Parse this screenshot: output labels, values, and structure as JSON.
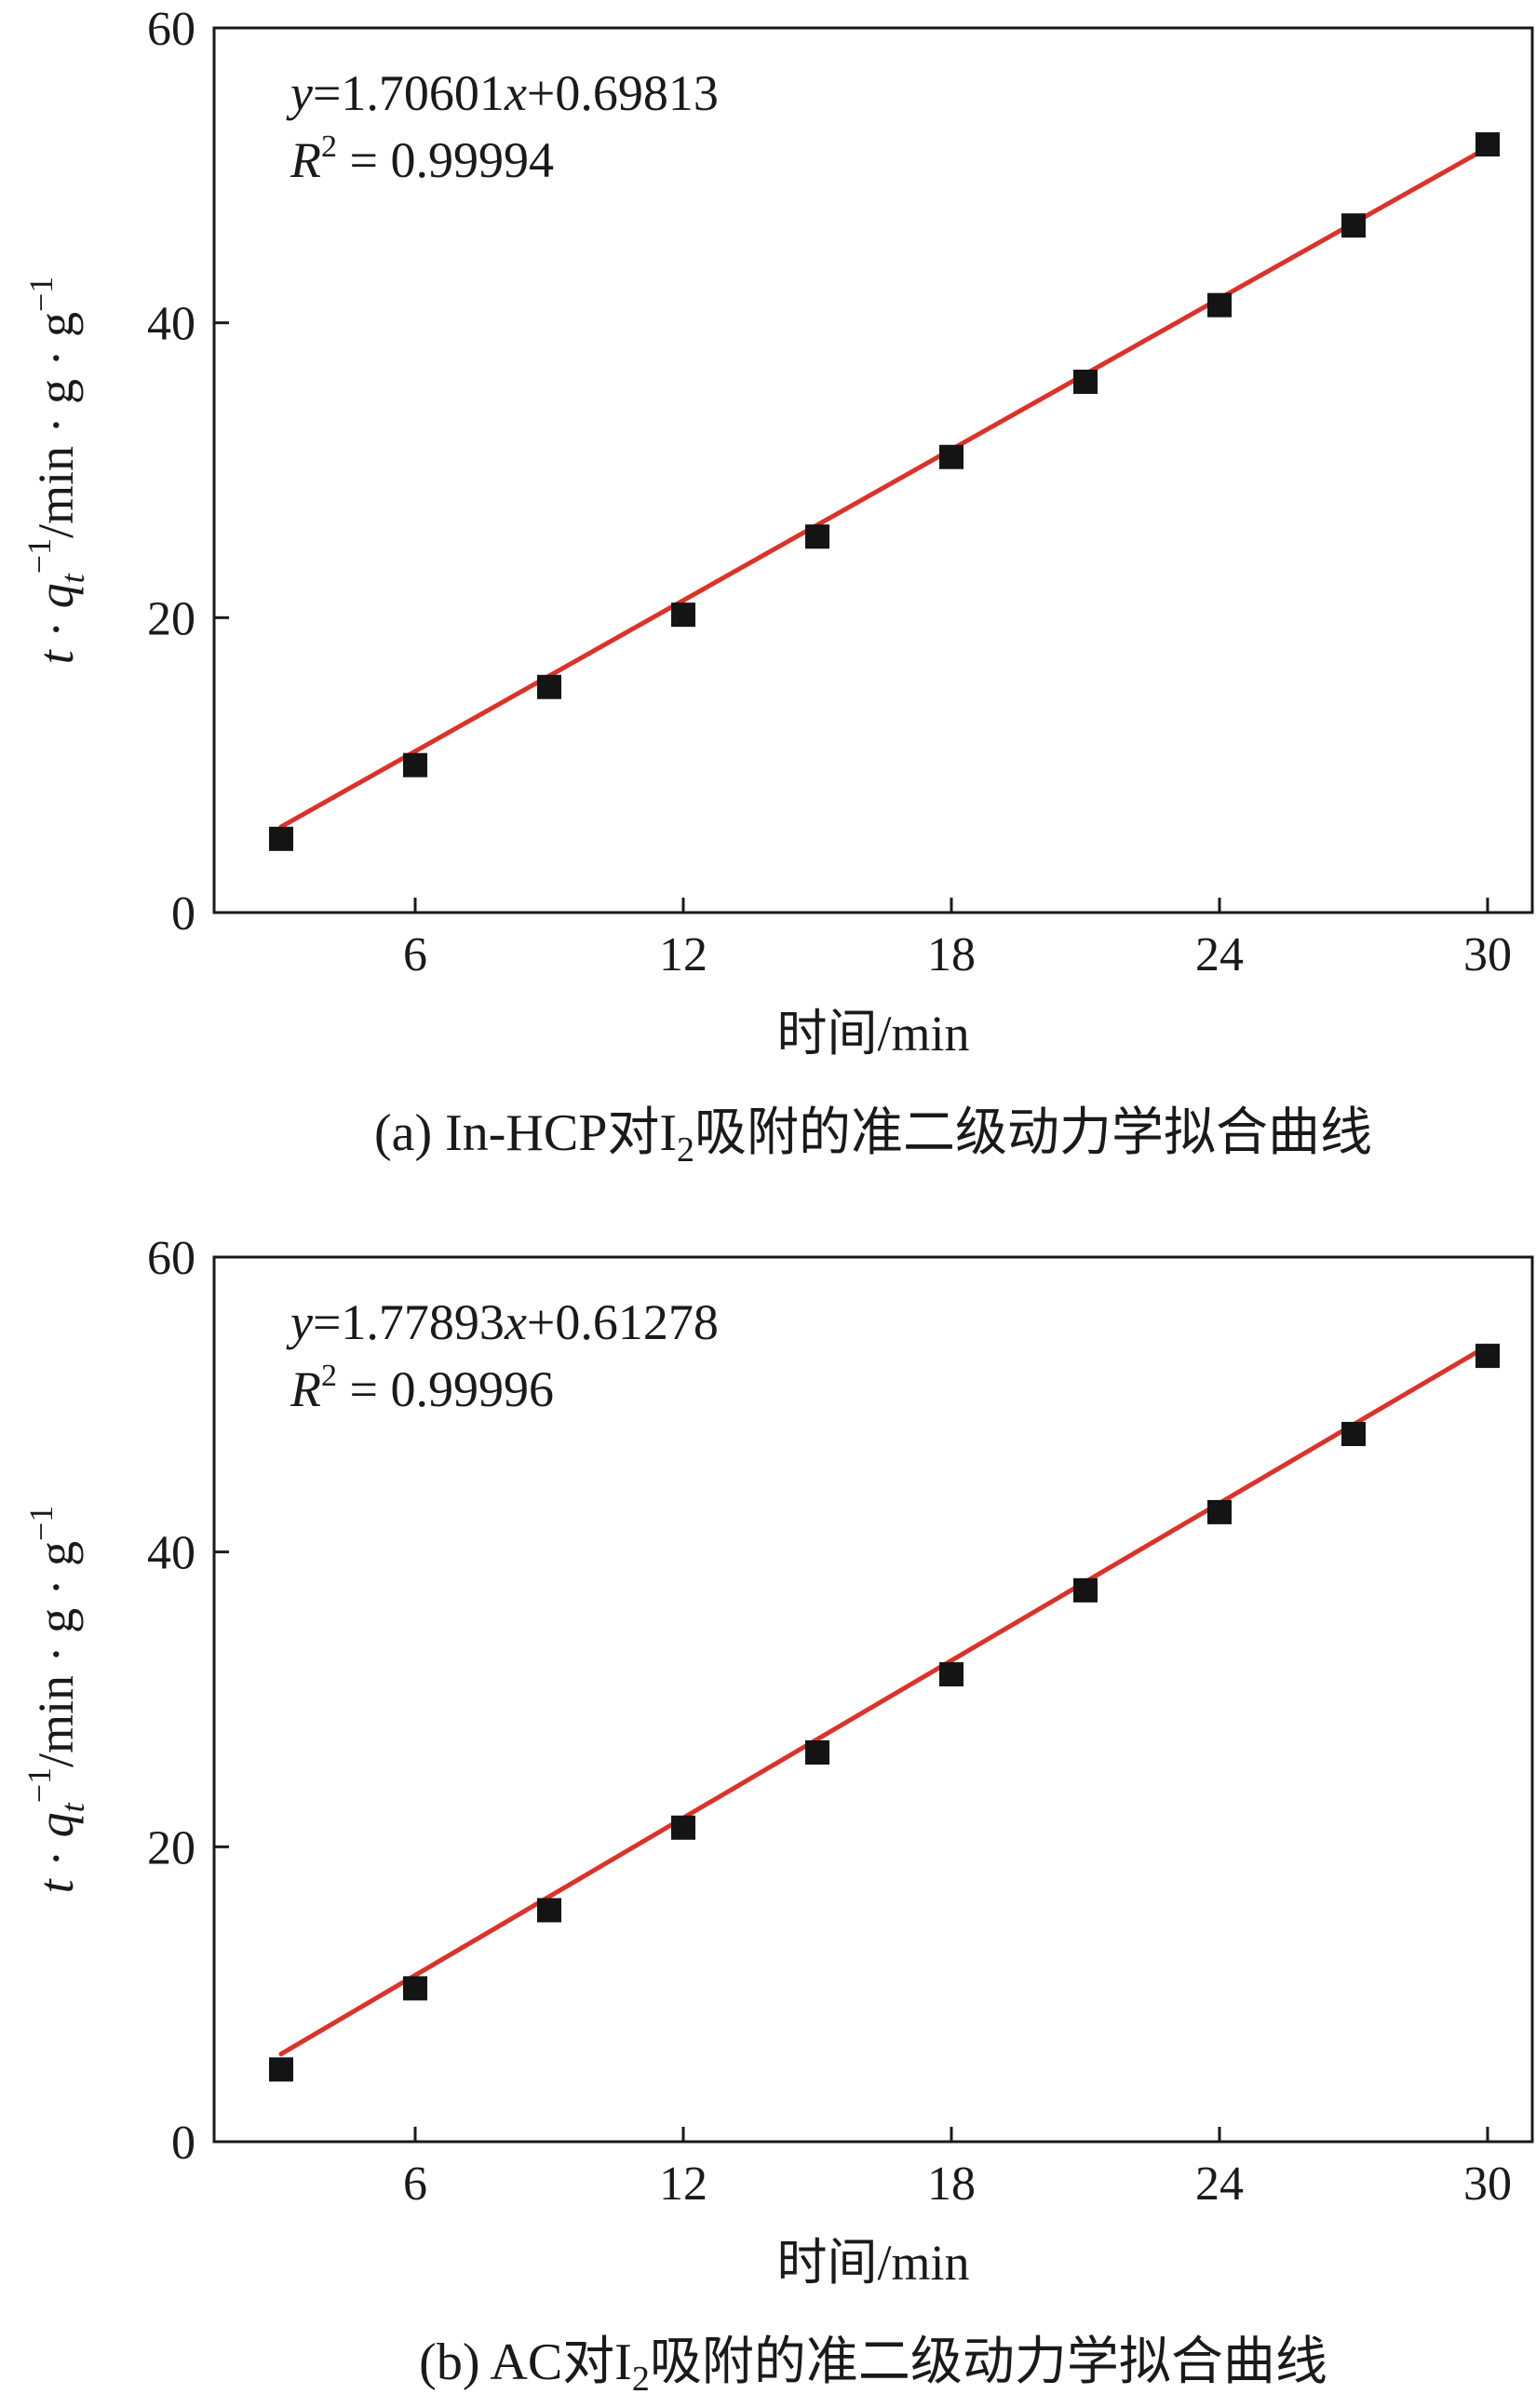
{
  "chart_data": [
    {
      "type": "scatter",
      "xlabel": "时间/min",
      "ylabel": {
        "prefix_t": "t",
        "dot": " · ",
        "q": "q",
        "q_sub": "t",
        "q_sup": "−1",
        "unit": "/min · g · g",
        "unit_sup": "−1"
      },
      "equation": {
        "y": "y",
        "eq_body": "=1.70601",
        "x": "x",
        "tail": "+0.69813",
        "r": "R",
        "r_sup": "2",
        "r_val": " = 0.99994"
      },
      "caption": {
        "pre": "(a) In-HCP对I",
        "sub": "2",
        "post": "吸附的准二级动力学拟合曲线"
      },
      "xlim": [
        1.5,
        31
      ],
      "ylim": [
        0,
        60
      ],
      "xticks": [
        6,
        12,
        18,
        24,
        30
      ],
      "yticks": [
        0,
        20,
        40,
        60
      ],
      "x": [
        3,
        6,
        9,
        12,
        15,
        18,
        21,
        24,
        27,
        30
      ],
      "y": [
        5.0,
        10.0,
        15.3,
        20.2,
        25.5,
        30.9,
        36.0,
        41.2,
        46.6,
        52.1
      ],
      "fit": {
        "slope": 1.70601,
        "intercept": 0.69813
      },
      "colors": {
        "fit": "#d9342b",
        "marker": "#141414"
      }
    },
    {
      "type": "scatter",
      "xlabel": "时间/min",
      "ylabel": {
        "prefix_t": "t",
        "dot": " · ",
        "q": "q",
        "q_sub": "t",
        "q_sup": "−1",
        "unit": "/min · g · g",
        "unit_sup": "−1"
      },
      "equation": {
        "y": "y",
        "eq_body": "=1.77893",
        "x": "x",
        "tail": "+0.61278",
        "r": "R",
        "r_sup": "2",
        "r_val": " = 0.99996"
      },
      "caption": {
        "pre": "(b) AC对I",
        "sub": "2",
        "post": "吸附的准二级动力学拟合曲线"
      },
      "xlim": [
        1.5,
        31
      ],
      "ylim": [
        0,
        60
      ],
      "xticks": [
        6,
        12,
        18,
        24,
        30
      ],
      "yticks": [
        0,
        20,
        40,
        60
      ],
      "x": [
        3,
        6,
        9,
        12,
        15,
        18,
        21,
        24,
        27,
        30
      ],
      "y": [
        4.9,
        10.4,
        15.7,
        21.3,
        26.4,
        31.7,
        37.4,
        42.7,
        48.0,
        53.3
      ],
      "fit": {
        "slope": 1.77893,
        "intercept": 0.61278
      },
      "colors": {
        "fit": "#d9342b",
        "marker": "#141414"
      }
    }
  ]
}
